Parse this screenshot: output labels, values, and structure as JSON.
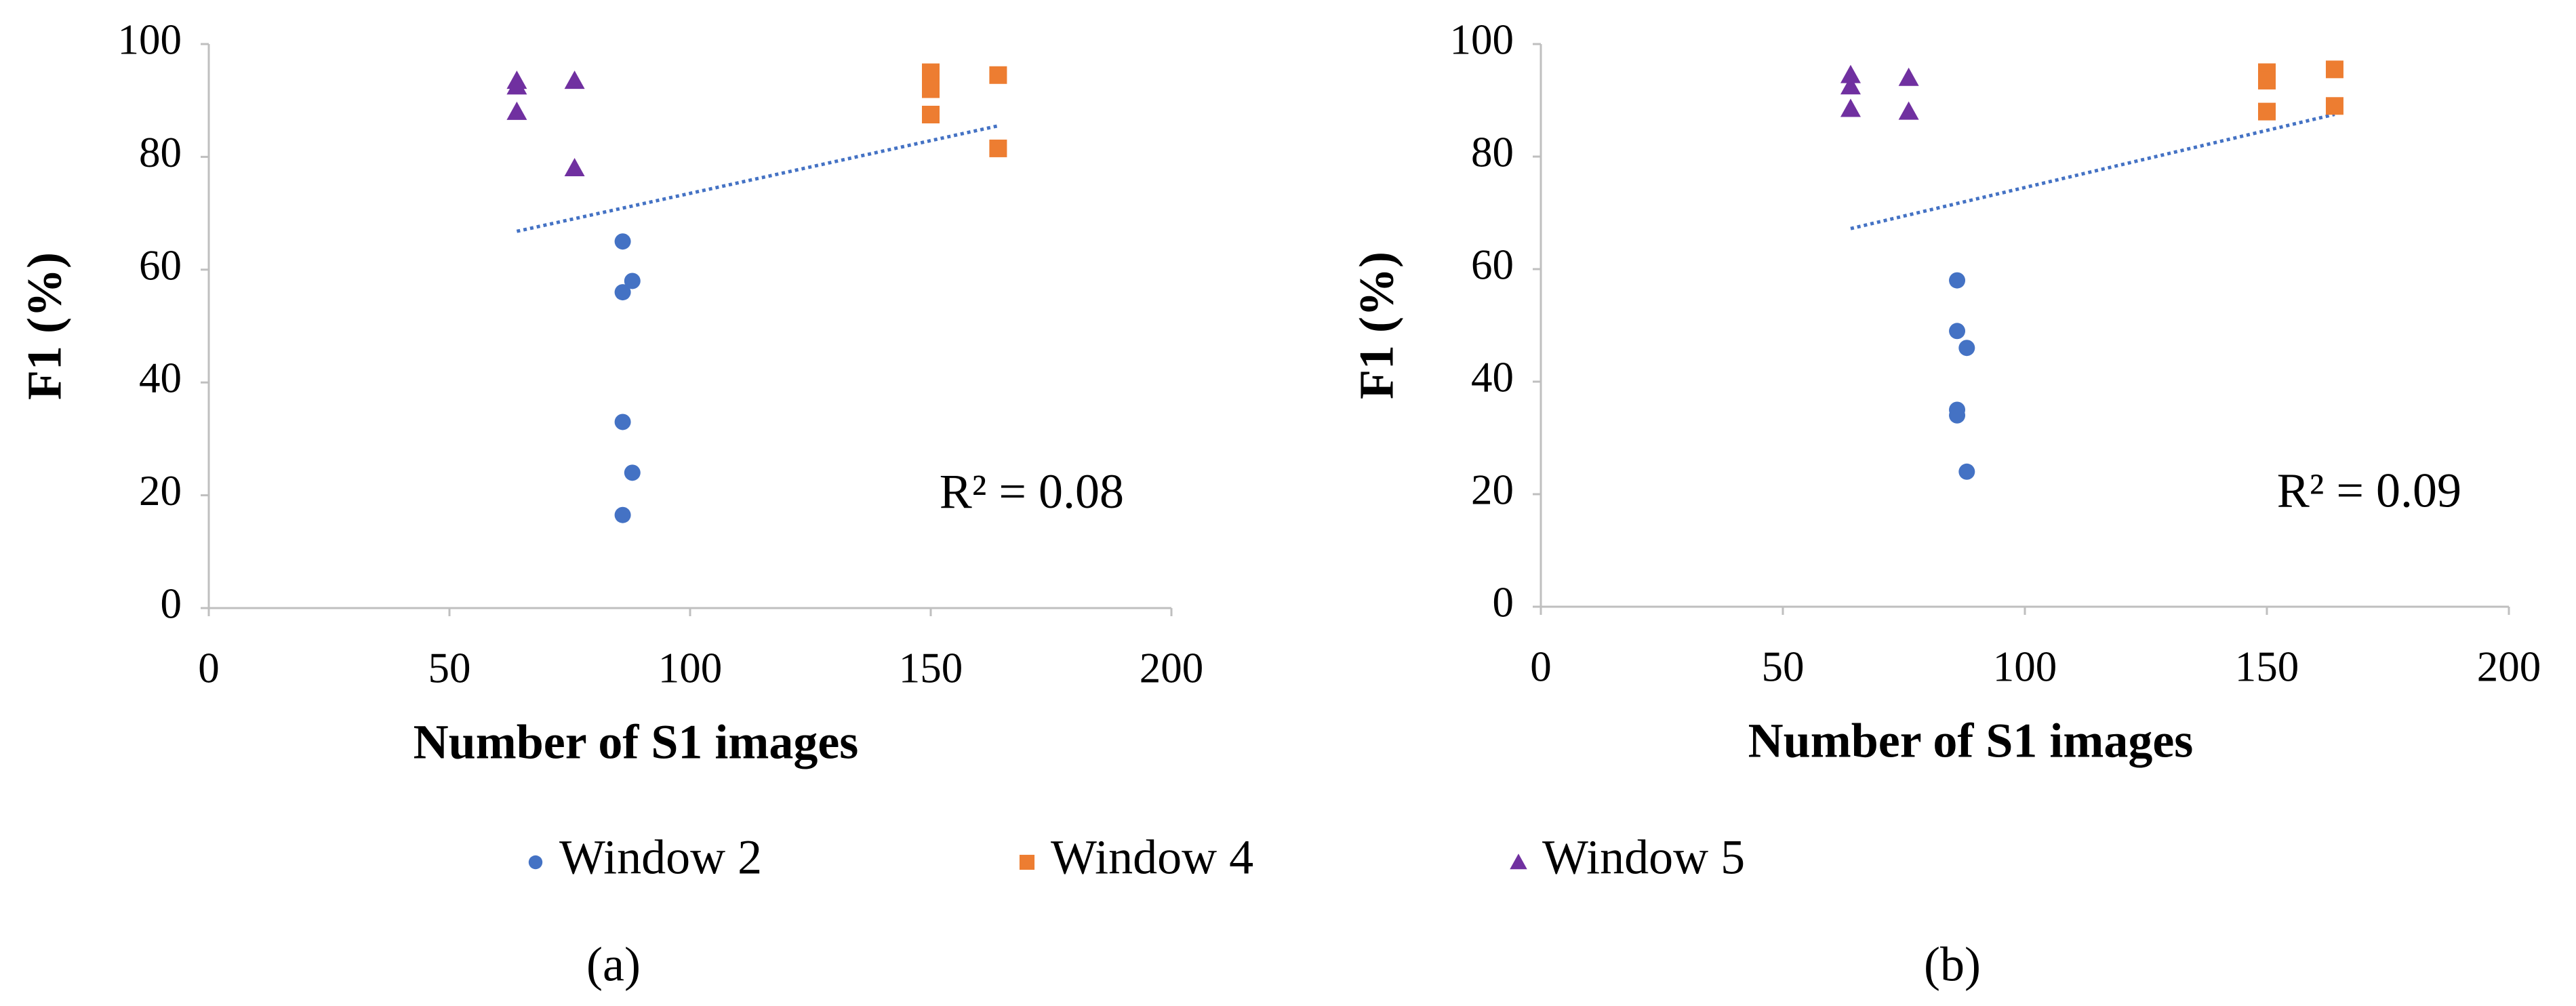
{
  "chart_data": [
    {
      "type": "scatter",
      "caption": "(a)",
      "x_label": "Number of S1 images",
      "y_label": "F1 (%)",
      "annotation": "R² = 0.08",
      "xlim": [
        0,
        200
      ],
      "xticks": [
        0,
        50,
        100,
        150,
        200
      ],
      "ylim": [
        0,
        100
      ],
      "yticks": [
        0,
        20,
        40,
        60,
        80,
        100
      ],
      "series": [
        {
          "name": "Window 2",
          "color": "#4472c4",
          "marker": "circle",
          "x": [
            86,
            86,
            88,
            86,
            88,
            86
          ],
          "values": [
            65,
            56,
            58,
            33,
            24,
            16.5
          ]
        },
        {
          "name": "Window 4",
          "color": "#ed7d31",
          "marker": "square",
          "x": [
            150,
            150,
            150,
            150,
            164,
            164
          ],
          "values": [
            95,
            93,
            92,
            87.5,
            94.5,
            81.5
          ]
        },
        {
          "name": "Window 5",
          "color": "#7030a0",
          "marker": "triangle",
          "x": [
            64,
            64,
            64,
            76,
            76
          ],
          "values": [
            93.5,
            92.5,
            88,
            93.5,
            78
          ]
        }
      ],
      "trendline": {
        "color": "#4472c4",
        "x": [
          64,
          164
        ],
        "values": [
          66.8,
          85.5
        ]
      }
    },
    {
      "type": "scatter",
      "caption": "(b)",
      "x_label": "Number of S1 images",
      "y_label": "F1 (%)",
      "annotation": "R² = 0.09",
      "xlim": [
        0,
        200
      ],
      "xticks": [
        0,
        50,
        100,
        150,
        200
      ],
      "ylim": [
        0,
        100
      ],
      "yticks": [
        0,
        20,
        40,
        60,
        80,
        100
      ],
      "series": [
        {
          "color": "#4472c4",
          "marker": "circle",
          "x": [
            86,
            86,
            88,
            86,
            86,
            88
          ],
          "values": [
            58,
            49,
            46,
            35,
            34,
            24
          ]
        },
        {
          "color": "#ed7d31",
          "marker": "square",
          "x": [
            150,
            150,
            150,
            164,
            164
          ],
          "values": [
            95,
            93.5,
            88,
            95.5,
            89
          ]
        },
        {
          "color": "#7030a0",
          "marker": "triangle",
          "x": [
            64,
            64,
            64,
            76,
            76
          ],
          "values": [
            94.5,
            92.5,
            88.5,
            94,
            88
          ]
        }
      ],
      "trendline": {
        "color": "#4472c4",
        "x": [
          64,
          164
        ],
        "values": [
          67.2,
          87.5
        ]
      }
    }
  ]
}
